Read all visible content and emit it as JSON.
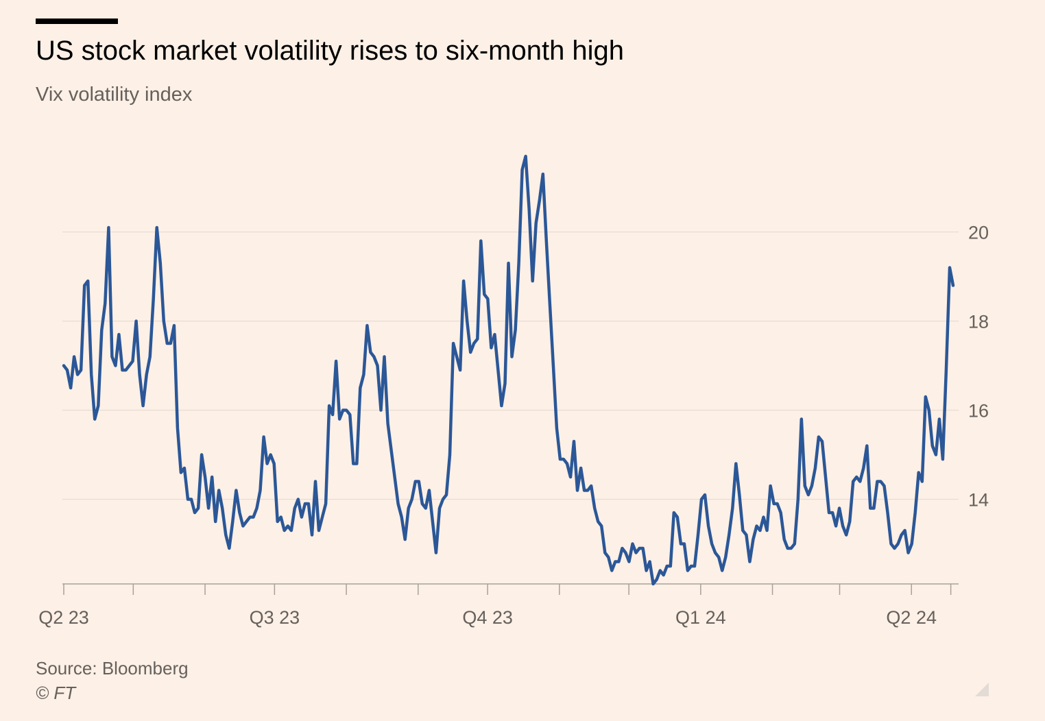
{
  "header": {
    "title": "US stock market volatility rises to six-month high",
    "subtitle": "Vix volatility index"
  },
  "footer": {
    "source": "Source: Bloomberg",
    "copyright": "© FT"
  },
  "colors": {
    "background": "#fdf0e6",
    "line": "#2b5797",
    "grid": "#e9ddd3",
    "axis": "#a8a19a",
    "text_muted": "#66605c"
  },
  "chart_data": {
    "type": "line",
    "title": "US stock market volatility rises to six-month high",
    "subtitle": "Vix volatility index",
    "xlabel": "",
    "ylabel": "",
    "ylim": [
      12.1,
      21.9
    ],
    "y_axis_side": "right",
    "grid": "horizontal",
    "yticks": [
      14,
      16,
      18,
      20
    ],
    "x_tick_labels": [
      {
        "label": "Q2 23",
        "date": "2023-04-01"
      },
      {
        "label": "Q3 23",
        "date": "2023-07-01"
      },
      {
        "label": "Q4 23",
        "date": "2023-10-01"
      },
      {
        "label": "Q1 24",
        "date": "2024-01-01"
      },
      {
        "label": "Q2 24",
        "date": "2024-04-01"
      }
    ],
    "x_minor_ticks": [
      "2023-04-01",
      "2023-05-01",
      "2023-06-01",
      "2023-07-01",
      "2023-08-01",
      "2023-09-01",
      "2023-10-01",
      "2023-11-01",
      "2023-12-01",
      "2024-01-01",
      "2024-02-01",
      "2024-03-01",
      "2024-04-01",
      "2024-04-18"
    ],
    "series": [
      {
        "color": "#2b5797",
        "x_range": [
          "2023-04-01",
          "2024-04-19"
        ],
        "values": [
          17.0,
          16.9,
          16.5,
          17.2,
          16.8,
          16.9,
          18.8,
          18.9,
          16.8,
          15.8,
          16.1,
          17.8,
          18.4,
          20.1,
          17.2,
          17.0,
          17.7,
          16.9,
          16.9,
          17.0,
          17.1,
          18.0,
          16.8,
          16.1,
          16.8,
          17.2,
          18.5,
          20.1,
          19.3,
          18.0,
          17.5,
          17.5,
          17.9,
          15.6,
          14.6,
          14.7,
          14.0,
          14.0,
          13.7,
          13.8,
          15.0,
          14.5,
          13.8,
          14.5,
          13.5,
          14.2,
          13.8,
          13.2,
          12.9,
          13.5,
          14.2,
          13.7,
          13.4,
          13.5,
          13.6,
          13.6,
          13.8,
          14.2,
          15.4,
          14.8,
          15.0,
          14.8,
          13.5,
          13.6,
          13.3,
          13.4,
          13.3,
          13.8,
          14.0,
          13.6,
          13.9,
          13.9,
          13.2,
          14.4,
          13.3,
          13.6,
          13.9,
          16.1,
          15.9,
          17.1,
          15.8,
          16.0,
          16.0,
          15.9,
          14.8,
          14.8,
          16.5,
          16.8,
          17.9,
          17.3,
          17.2,
          17.0,
          16.0,
          17.2,
          15.7,
          15.1,
          14.5,
          13.9,
          13.6,
          13.1,
          13.8,
          14.0,
          14.4,
          14.4,
          13.9,
          13.8,
          14.2,
          13.5,
          12.8,
          13.8,
          14.0,
          14.1,
          15.0,
          17.5,
          17.2,
          16.9,
          18.9,
          18.0,
          17.3,
          17.5,
          17.6,
          19.8,
          18.6,
          18.5,
          17.4,
          17.7,
          16.9,
          16.1,
          16.6,
          19.3,
          17.2,
          17.8,
          19.3,
          21.4,
          21.7,
          20.5,
          18.9,
          20.2,
          20.7,
          21.3,
          19.8,
          18.4,
          17.0,
          15.6,
          14.9,
          14.9,
          14.8,
          14.5,
          15.3,
          14.2,
          14.7,
          14.2,
          14.2,
          14.3,
          13.8,
          13.5,
          13.4,
          12.8,
          12.7,
          12.4,
          12.6,
          12.6,
          12.9,
          12.8,
          12.6,
          13.0,
          12.8,
          12.9,
          12.9,
          12.4,
          12.6,
          12.1,
          12.2,
          12.4,
          12.3,
          12.5,
          12.5,
          13.7,
          13.6,
          13.0,
          13.0,
          12.4,
          12.5,
          12.5,
          13.2,
          14.0,
          14.1,
          13.4,
          13.0,
          12.8,
          12.7,
          12.4,
          12.7,
          13.2,
          13.8,
          14.8,
          14.1,
          13.3,
          13.2,
          12.6,
          13.1,
          13.4,
          13.3,
          13.6,
          13.3,
          14.3,
          13.9,
          13.9,
          13.7,
          13.1,
          12.9,
          12.9,
          13.0,
          14.0,
          15.8,
          14.3,
          14.1,
          14.3,
          14.7,
          15.4,
          15.3,
          14.5,
          13.7,
          13.7,
          13.4,
          13.8,
          13.4,
          13.2,
          13.5,
          14.4,
          14.5,
          14.4,
          14.7,
          15.2,
          13.8,
          13.8,
          14.4,
          14.4,
          14.3,
          13.7,
          13.0,
          12.9,
          13.0,
          13.2,
          13.3,
          12.8,
          13.0,
          13.7,
          14.6,
          14.4,
          16.3,
          16.0,
          15.2,
          15.0,
          15.8,
          14.9,
          16.9,
          19.2,
          18.8
        ]
      }
    ]
  }
}
